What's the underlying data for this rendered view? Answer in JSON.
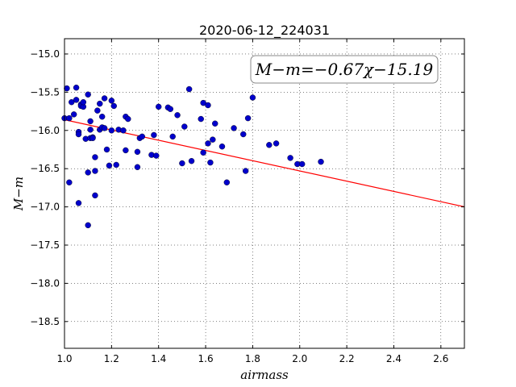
{
  "chart_data": {
    "type": "scatter",
    "title": "2020-06-12_224031",
    "xlabel": "airmass",
    "ylabel": "M−m",
    "xlim": [
      1.0,
      2.7
    ],
    "ylim": [
      -18.85,
      -14.8
    ],
    "y_inverted": true,
    "grid": true,
    "x_ticks": [
      "1.0",
      "1.2",
      "1.4",
      "1.6",
      "1.8",
      "2.0",
      "2.2",
      "2.4",
      "2.6"
    ],
    "y_ticks": [
      "−15.0",
      "−15.5",
      "−16.0",
      "−16.5",
      "−17.0",
      "−17.5",
      "−18.0",
      "−18.5"
    ],
    "y_tick_values": [
      -15.0,
      -15.5,
      -16.0,
      -16.5,
      -17.0,
      -17.5,
      -18.0,
      -18.5
    ],
    "x_tick_values": [
      1.0,
      1.2,
      1.4,
      1.6,
      1.8,
      2.0,
      2.2,
      2.4,
      2.6
    ],
    "annotation": "M−m=−0.67χ−15.19",
    "fit": {
      "slope": -0.67,
      "intercept": -15.19,
      "color": "#ff0000"
    },
    "point_color": "#0000cc",
    "series": [
      {
        "x": [
          1.0,
          1.01,
          1.02,
          1.02,
          1.03,
          1.04,
          1.05,
          1.05,
          1.06,
          1.06,
          1.06,
          1.07,
          1.07,
          1.08,
          1.08,
          1.09,
          1.1,
          1.1,
          1.1,
          1.11,
          1.11,
          1.11,
          1.12,
          1.12,
          1.13,
          1.13,
          1.13,
          1.14,
          1.15,
          1.15,
          1.16,
          1.16,
          1.17,
          1.17,
          1.18,
          1.19,
          1.2,
          1.2,
          1.21,
          1.22,
          1.23,
          1.25,
          1.26,
          1.26,
          1.27,
          1.31,
          1.31,
          1.32,
          1.33,
          1.37,
          1.38,
          1.39,
          1.4,
          1.44,
          1.45,
          1.46,
          1.48,
          1.5,
          1.51,
          1.53,
          1.54,
          1.58,
          1.59,
          1.59,
          1.61,
          1.61,
          1.62,
          1.63,
          1.64,
          1.67,
          1.69,
          1.72,
          1.76,
          1.77,
          1.78,
          1.8,
          1.87,
          1.9,
          1.96,
          1.99,
          2.01,
          2.09
        ],
        "y": [
          -15.84,
          -15.45,
          -15.84,
          -16.68,
          -15.63,
          -15.79,
          -15.6,
          -15.44,
          -16.02,
          -16.05,
          -16.95,
          -15.66,
          -15.68,
          -15.69,
          -15.63,
          -16.11,
          -16.55,
          -17.24,
          -15.53,
          -16.1,
          -15.88,
          -15.99,
          -16.09,
          -16.1,
          -16.35,
          -16.53,
          -16.85,
          -15.74,
          -15.99,
          -15.65,
          -15.82,
          -15.96,
          -15.58,
          -15.97,
          -16.25,
          -16.46,
          -15.61,
          -16.0,
          -15.68,
          -16.45,
          -15.99,
          -16.0,
          -15.82,
          -16.26,
          -15.85,
          -16.28,
          -16.48,
          -16.1,
          -16.08,
          -16.32,
          -16.06,
          -16.33,
          -15.69,
          -15.7,
          -15.72,
          -16.08,
          -15.8,
          -16.43,
          -15.95,
          -15.46,
          -16.4,
          -15.85,
          -15.64,
          -16.29,
          -16.17,
          -15.67,
          -16.42,
          -16.12,
          -15.91,
          -16.21,
          -16.68,
          -15.97,
          -16.05,
          -16.53,
          -15.84,
          -15.57,
          -16.19,
          -16.17,
          -16.36,
          -16.44,
          -16.44,
          -16.41
        ]
      }
    ]
  }
}
